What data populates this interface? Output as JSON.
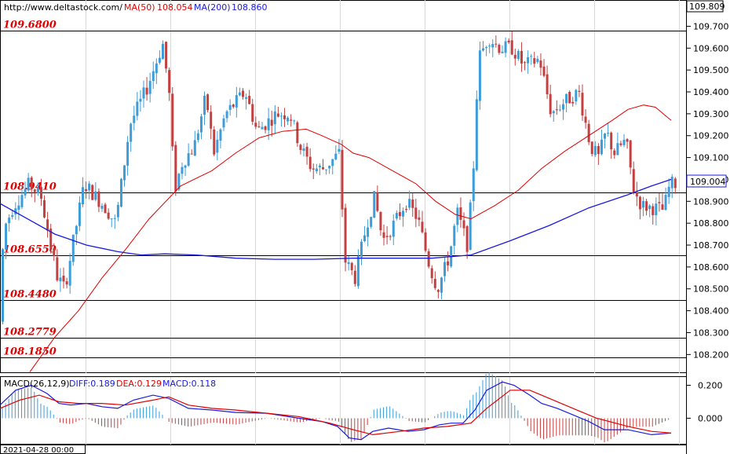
{
  "chart_data": {
    "type": "candlestick",
    "header": {
      "url": "http://www.deltastock.com/",
      "ma50_label": "MA(50)",
      "ma50_value": "108.054",
      "ma200_label": "MA(200)",
      "ma200_value": "108.860"
    },
    "price_axis": {
      "top_label": "109.809",
      "ticks": [
        "109.700",
        "109.600",
        "109.500",
        "109.400",
        "109.300",
        "109.200",
        "109.100",
        "109.000",
        "108.900",
        "108.800",
        "108.700",
        "108.600",
        "108.500",
        "108.400",
        "108.300",
        "108.200"
      ],
      "tick_values": [
        109.7,
        109.6,
        109.5,
        109.4,
        109.3,
        109.2,
        109.1,
        109.0,
        108.9,
        108.8,
        108.7,
        108.6,
        108.5,
        108.4,
        108.3,
        108.2
      ],
      "ylim": [
        108.115,
        109.82
      ],
      "current_price": "109.004",
      "current_value": 109.004
    },
    "levels": [
      {
        "label": "109.6800",
        "value": 109.68
      },
      {
        "label": "108.9410",
        "value": 108.941
      },
      {
        "label": "108.6550",
        "value": 108.655
      },
      {
        "label": "108.4480",
        "value": 108.448
      },
      {
        "label": "108.2779",
        "value": 108.2779
      },
      {
        "label": "108.1850",
        "value": 108.185
      }
    ],
    "date_label": "2021-04-28 00:00",
    "path_anchors": [
      [
        0,
        108.35
      ],
      [
        8,
        108.78
      ],
      [
        20,
        108.88
      ],
      [
        40,
        108.98
      ],
      [
        55,
        108.92
      ],
      [
        75,
        108.56
      ],
      [
        85,
        108.5
      ],
      [
        95,
        108.7
      ],
      [
        110,
        108.98
      ],
      [
        135,
        108.88
      ],
      [
        150,
        108.8
      ],
      [
        168,
        109.25
      ],
      [
        190,
        109.42
      ],
      [
        210,
        109.62
      ],
      [
        218,
        109.4
      ],
      [
        225,
        108.95
      ],
      [
        235,
        109.08
      ],
      [
        250,
        109.15
      ],
      [
        265,
        109.38
      ],
      [
        275,
        109.12
      ],
      [
        290,
        109.3
      ],
      [
        315,
        109.4
      ],
      [
        330,
        109.22
      ],
      [
        355,
        109.3
      ],
      [
        372,
        109.3
      ],
      [
        385,
        109.15
      ],
      [
        400,
        109.05
      ],
      [
        415,
        109.05
      ],
      [
        435,
        109.12
      ],
      [
        442,
        108.63
      ],
      [
        455,
        108.55
      ],
      [
        470,
        108.8
      ],
      [
        480,
        108.92
      ],
      [
        490,
        108.72
      ],
      [
        505,
        108.8
      ],
      [
        520,
        108.9
      ],
      [
        535,
        108.82
      ],
      [
        550,
        108.6
      ],
      [
        560,
        108.5
      ],
      [
        575,
        108.65
      ],
      [
        585,
        108.85
      ],
      [
        598,
        108.7
      ],
      [
        605,
        109.0
      ],
      [
        612,
        109.55
      ],
      [
        625,
        109.65
      ],
      [
        640,
        109.6
      ],
      [
        655,
        109.6
      ],
      [
        670,
        109.52
      ],
      [
        690,
        109.55
      ],
      [
        705,
        109.3
      ],
      [
        720,
        109.35
      ],
      [
        740,
        109.4
      ],
      [
        755,
        109.15
      ],
      [
        765,
        109.1
      ],
      [
        775,
        109.22
      ],
      [
        785,
        109.12
      ],
      [
        800,
        109.18
      ],
      [
        810,
        108.95
      ],
      [
        820,
        108.88
      ],
      [
        835,
        108.87
      ],
      [
        848,
        108.86
      ],
      [
        856,
        108.98
      ]
    ],
    "ma50_anchors": [
      [
        38,
        108.12
      ],
      [
        70,
        108.28
      ],
      [
        100,
        108.4
      ],
      [
        130,
        108.55
      ],
      [
        160,
        108.68
      ],
      [
        190,
        108.82
      ],
      [
        230,
        108.97
      ],
      [
        270,
        109.04
      ],
      [
        300,
        109.12
      ],
      [
        330,
        109.19
      ],
      [
        360,
        109.22
      ],
      [
        390,
        109.23
      ],
      [
        410,
        109.2
      ],
      [
        435,
        109.16
      ],
      [
        450,
        109.12
      ],
      [
        470,
        109.1
      ],
      [
        500,
        109.04
      ],
      [
        530,
        108.98
      ],
      [
        555,
        108.9
      ],
      [
        580,
        108.84
      ],
      [
        600,
        108.82
      ],
      [
        630,
        108.88
      ],
      [
        660,
        108.95
      ],
      [
        690,
        109.05
      ],
      [
        720,
        109.13
      ],
      [
        750,
        109.2
      ],
      [
        780,
        109.27
      ],
      [
        800,
        109.32
      ],
      [
        820,
        109.34
      ],
      [
        835,
        109.33
      ],
      [
        855,
        109.27
      ]
    ],
    "ma200_anchors": [
      [
        0,
        108.89
      ],
      [
        30,
        108.83
      ],
      [
        70,
        108.75
      ],
      [
        110,
        108.7
      ],
      [
        150,
        108.67
      ],
      [
        180,
        108.655
      ],
      [
        210,
        108.66
      ],
      [
        250,
        108.655
      ],
      [
        300,
        108.64
      ],
      [
        350,
        108.635
      ],
      [
        400,
        108.635
      ],
      [
        450,
        108.64
      ],
      [
        500,
        108.64
      ],
      [
        550,
        108.64
      ],
      [
        600,
        108.655
      ],
      [
        650,
        108.72
      ],
      [
        700,
        108.79
      ],
      [
        750,
        108.87
      ],
      [
        800,
        108.93
      ],
      [
        830,
        108.97
      ],
      [
        855,
        109.0
      ]
    ],
    "macd": {
      "label": "MACD(26,12,9)",
      "diff_label": "DIFF:0.189",
      "dea_label": "DEA:0.129",
      "macd_label": "MACD:0.118",
      "ticks": [
        "0.200",
        "0.000"
      ],
      "tick_values": [
        0.2,
        0.0
      ],
      "ylim": [
        -0.16,
        0.25
      ],
      "diff_anchors": [
        [
          0,
          0.08
        ],
        [
          20,
          0.17
        ],
        [
          40,
          0.2
        ],
        [
          60,
          0.15
        ],
        [
          75,
          0.09
        ],
        [
          90,
          0.08
        ],
        [
          110,
          0.09
        ],
        [
          130,
          0.07
        ],
        [
          150,
          0.06
        ],
        [
          170,
          0.11
        ],
        [
          195,
          0.14
        ],
        [
          215,
          0.12
        ],
        [
          240,
          0.06
        ],
        [
          270,
          0.05
        ],
        [
          300,
          0.035
        ],
        [
          340,
          0.03
        ],
        [
          380,
          0.0
        ],
        [
          410,
          -0.02
        ],
        [
          430,
          -0.05
        ],
        [
          445,
          -0.12
        ],
        [
          460,
          -0.13
        ],
        [
          475,
          -0.08
        ],
        [
          495,
          -0.06
        ],
        [
          520,
          -0.08
        ],
        [
          540,
          -0.07
        ],
        [
          560,
          -0.04
        ],
        [
          575,
          -0.03
        ],
        [
          590,
          -0.03
        ],
        [
          605,
          0.05
        ],
        [
          620,
          0.17
        ],
        [
          640,
          0.22
        ],
        [
          655,
          0.2
        ],
        [
          675,
          0.14
        ],
        [
          690,
          0.09
        ],
        [
          710,
          0.06
        ],
        [
          730,
          0.02
        ],
        [
          750,
          -0.02
        ],
        [
          770,
          -0.07
        ],
        [
          800,
          -0.07
        ],
        [
          830,
          -0.1
        ],
        [
          855,
          -0.09
        ]
      ],
      "dea_anchors": [
        [
          0,
          0.06
        ],
        [
          25,
          0.11
        ],
        [
          50,
          0.14
        ],
        [
          75,
          0.1
        ],
        [
          100,
          0.09
        ],
        [
          130,
          0.09
        ],
        [
          160,
          0.08
        ],
        [
          195,
          0.11
        ],
        [
          215,
          0.13
        ],
        [
          240,
          0.08
        ],
        [
          270,
          0.06
        ],
        [
          300,
          0.05
        ],
        [
          340,
          0.03
        ],
        [
          380,
          0.01
        ],
        [
          420,
          -0.03
        ],
        [
          450,
          -0.07
        ],
        [
          475,
          -0.1
        ],
        [
          510,
          -0.08
        ],
        [
          540,
          -0.06
        ],
        [
          570,
          -0.05
        ],
        [
          600,
          -0.03
        ],
        [
          620,
          0.06
        ],
        [
          650,
          0.17
        ],
        [
          675,
          0.17
        ],
        [
          700,
          0.12
        ],
        [
          730,
          0.06
        ],
        [
          760,
          0.0
        ],
        [
          800,
          -0.05
        ],
        [
          830,
          -0.08
        ],
        [
          855,
          -0.09
        ]
      ]
    }
  }
}
